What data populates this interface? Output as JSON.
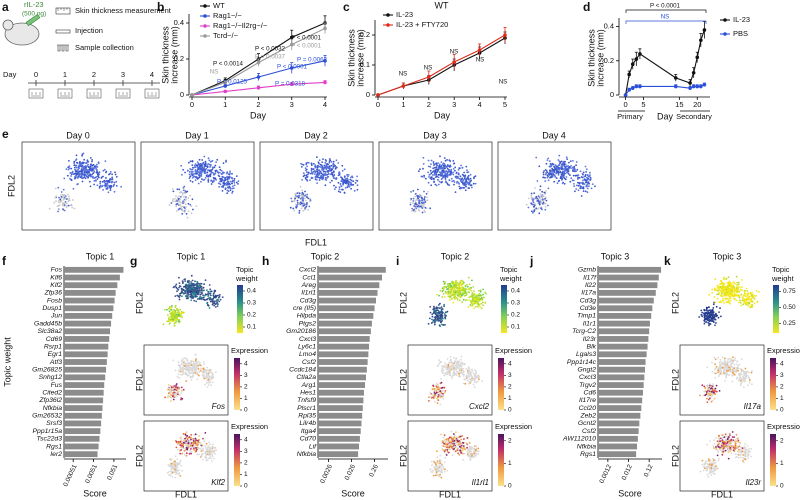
{
  "panel_letters": [
    "a",
    "b",
    "c",
    "d",
    "e",
    "f",
    "g",
    "h",
    "i",
    "j",
    "k"
  ],
  "schematic": {
    "dose_label": "rIL-23",
    "dose": "(500 ng)",
    "legend": [
      "Skin thickness measurement",
      "Injection",
      "Sample collection"
    ],
    "day_label": "Day",
    "days": [
      0,
      1,
      2,
      3,
      4
    ]
  },
  "chart_data": [
    {
      "type": "line",
      "xlabel": "Day",
      "ylabel": [
        "Skin thickness",
        "increase (mm)"
      ],
      "x": [
        0,
        1,
        2,
        3,
        4
      ],
      "xlim": [
        0,
        4
      ],
      "xticks": [
        0,
        1,
        2,
        3,
        4
      ],
      "ylim": [
        0,
        0.45
      ],
      "yticks": [
        0,
        0.2,
        0.4
      ],
      "series": [
        {
          "name": "WT",
          "color": "#111111",
          "values": [
            0,
            0.08,
            0.2,
            0.32,
            0.4
          ],
          "errors": [
            0,
            0.015,
            0.03,
            0.04,
            0.04
          ]
        },
        {
          "name": "Rag1−/−",
          "color": "#2b4fd8",
          "values": [
            0,
            0.05,
            0.1,
            0.15,
            0.19
          ],
          "errors": [
            0,
            0.01,
            0.02,
            0.03,
            0.03
          ]
        },
        {
          "name": "Rag1−/−Il2rg−/−",
          "color": "#e040c8",
          "values": [
            0,
            0.02,
            0.04,
            0.06,
            0.07
          ],
          "errors": [
            0,
            0.005,
            0.01,
            0.01,
            0.01
          ]
        },
        {
          "name": "Tcrd−/−",
          "color": "#9a9a9a",
          "values": [
            0,
            0.07,
            0.18,
            0.28,
            0.37
          ],
          "errors": [
            0,
            0.01,
            0.02,
            0.03,
            0.03
          ]
        }
      ],
      "annotations": [
        {
          "text": "P < 0.0001",
          "color": "#111111"
        },
        {
          "text": "P < 0.0001",
          "color": "#9a9a9a"
        },
        {
          "text": "P < 0.0032",
          "color": "#111111"
        },
        {
          "text": "P = 0.0037",
          "color": "#9a9a9a"
        },
        {
          "text": "P < 0.0014",
          "color": "#111111"
        },
        {
          "text": "NS",
          "color": "#9a9a9a"
        },
        {
          "text": "P = 0.0125",
          "color": "#2b4fd8"
        },
        {
          "text": "P < 0.0001",
          "color": "#2b4fd8"
        },
        {
          "text": "P = 0.0318",
          "color": "#2b4fd8"
        },
        {
          "text": "P = 0.0062",
          "color": "#2b4fd8"
        }
      ]
    },
    {
      "type": "line",
      "title": "WT",
      "xlabel": "Day",
      "ylabel": [
        "Skin thickness",
        "increase (mm)"
      ],
      "x": [
        0,
        1,
        2,
        3,
        4,
        5
      ],
      "xlim": [
        0,
        5
      ],
      "xticks": [
        0,
        1,
        2,
        3,
        4,
        5
      ],
      "ylim": [
        0,
        0.25
      ],
      "yticks": [
        0,
        0.1,
        0.2
      ],
      "series": [
        {
          "name": "IL-23",
          "color": "#111111",
          "values": [
            0,
            0.03,
            0.05,
            0.1,
            0.14,
            0.19
          ],
          "errors": [
            0,
            0.01,
            0.015,
            0.02,
            0.02,
            0.02
          ]
        },
        {
          "name": "IL-23 + FTY720",
          "color": "#e02a1a",
          "values": [
            0,
            0.03,
            0.06,
            0.11,
            0.15,
            0.2
          ],
          "errors": [
            0,
            0.01,
            0.02,
            0.025,
            0.02,
            0.025
          ]
        }
      ],
      "annotations": [
        {
          "text": "NS",
          "color": "#111111"
        },
        {
          "text": "NS",
          "color": "#111111"
        },
        {
          "text": "NS",
          "color": "#111111"
        },
        {
          "text": "NS",
          "color": "#111111"
        },
        {
          "text": "NS",
          "color": "#111111"
        }
      ]
    },
    {
      "type": "line",
      "xlabel": "Day",
      "xgroups": [
        "Primary",
        "Secondary"
      ],
      "ylabel": [
        "Skin thickness",
        "increase (mm)"
      ],
      "x": [
        0,
        1,
        2,
        3,
        4,
        14,
        18,
        19,
        20,
        21,
        22
      ],
      "xlim": [
        -1,
        23
      ],
      "xticks": [
        0,
        5,
        15,
        20
      ],
      "ylim": [
        0,
        0.45
      ],
      "yticks": [
        0,
        0.2,
        0.4
      ],
      "series": [
        {
          "name": "IL-23",
          "color": "#111111",
          "values": [
            0,
            0.12,
            0.18,
            0.21,
            0.24,
            0.1,
            0.07,
            0.13,
            0.22,
            0.32,
            0.38
          ],
          "errors": [
            0,
            0.02,
            0.03,
            0.04,
            0.03,
            0.02,
            0.02,
            0.03,
            0.03,
            0.04,
            0.05
          ]
        },
        {
          "name": "PBS",
          "color": "#2b4fd8",
          "values": [
            0,
            0.03,
            0.04,
            0.05,
            0.05,
            0.05,
            0.04,
            0.05,
            0.05,
            0.05,
            0.06
          ],
          "errors": [
            0,
            0.01,
            0.01,
            0.01,
            0.01,
            0.01,
            0.01,
            0.01,
            0.01,
            0.01,
            0.01
          ]
        }
      ],
      "annotations": [
        {
          "text": "P < 0.0001",
          "color": "#111111"
        },
        {
          "text": "NS",
          "color": "#2b4fd8"
        }
      ]
    },
    {
      "type": "bar",
      "orientation": "horizontal",
      "log_x": true,
      "color": "#8c8c8c",
      "title": "Topic 1",
      "ylabel": "Topic weight",
      "xlabel": "Score",
      "categories": [
        "Fos",
        "Klf6",
        "Klf2",
        "Zfp36",
        "Fosb",
        "Dusp1",
        "Jun",
        "Gadd45b",
        "Slc38a2",
        "Cd69",
        "Rsrp1",
        "Egr1",
        "Atf3",
        "Gm26825",
        "Snhg12",
        "Fus",
        "Cited2",
        "Zfp36l2",
        "Nfkbia",
        "Gm26532",
        "Srsf3",
        "Ppp1r15a",
        "Tsc22d3",
        "Rgs1",
        "Ier2"
      ],
      "values": [
        0.15,
        0.1,
        0.075,
        0.062,
        0.055,
        0.048,
        0.042,
        0.037,
        0.033,
        0.03,
        0.027,
        0.025,
        0.023,
        0.021,
        0.019,
        0.017,
        0.016,
        0.015,
        0.014,
        0.013,
        0.012,
        0.011,
        0.01,
        0.009,
        0.008
      ],
      "xlim": [
        0.00018,
        0.2
      ],
      "xticks": [
        0.00051,
        0.0051,
        0.051
      ]
    },
    {
      "type": "bar",
      "orientation": "horizontal",
      "log_x": true,
      "color": "#8c8c8c",
      "title": "Topic 2",
      "xlabel": "Score",
      "categories": [
        "Cxcl2",
        "Ccl1",
        "Areg",
        "Il1rl1",
        "Cd3g",
        "cre (Il5)",
        "Hilpda",
        "Ptgs2",
        "Gm20186",
        "Cxcl3",
        "Ly6c1",
        "Lmo4",
        "Csf2",
        "Ccdc184",
        "Ctla2a",
        "Arg1",
        "Hes1",
        "Tnfsf9",
        "Plscr1",
        "Rpl35",
        "Lilr4b",
        "Itga4",
        "Cd70",
        "Lif",
        "Nfkbia"
      ],
      "values": [
        0.8,
        0.55,
        0.42,
        0.35,
        0.3,
        0.26,
        0.23,
        0.2,
        0.18,
        0.16,
        0.15,
        0.14,
        0.13,
        0.12,
        0.11,
        0.1,
        0.09,
        0.085,
        0.08,
        0.075,
        0.07,
        0.065,
        0.06,
        0.055,
        0.05
      ],
      "xlim": [
        0.0009,
        1
      ],
      "xticks": [
        0.0026,
        0.026,
        0.26
      ]
    },
    {
      "type": "bar",
      "orientation": "horizontal",
      "log_x": true,
      "color": "#8c8c8c",
      "title": "Topic 3",
      "xlabel": "Score",
      "categories": [
        "Gzmb",
        "Il17f",
        "Il22",
        "Il17a",
        "Cd3g",
        "Cd3e",
        "Timp1",
        "Il1r1",
        "Tcrg-C2",
        "Il23r",
        "Blk",
        "Lgals3",
        "Ppp1r14c",
        "Gngt2",
        "Cxcl3",
        "Trgv2",
        "Cd6",
        "Il17re",
        "Ccl20",
        "Zeb2",
        "Gcnt2",
        "Csf2",
        "AW112010",
        "Nfkbia",
        "Rgs1"
      ],
      "values": [
        0.45,
        0.35,
        0.3,
        0.25,
        0.2,
        0.17,
        0.15,
        0.13,
        0.12,
        0.11,
        0.1,
        0.09,
        0.08,
        0.075,
        0.07,
        0.065,
        0.06,
        0.055,
        0.05,
        0.045,
        0.04,
        0.037,
        0.034,
        0.031,
        0.028
      ],
      "xlim": [
        0.0004,
        0.5
      ],
      "xticks": [
        0.0012,
        0.012,
        0.12
      ]
    }
  ],
  "embedding": {
    "days": [
      "Day 0",
      "Day 1",
      "Day 2",
      "Day 3",
      "Day 4"
    ],
    "xlabel": "FDL1",
    "ylabel": "FDL2"
  },
  "topics": [
    {
      "title": "Topic 1",
      "weight_label": [
        "Topic",
        "weight"
      ],
      "weight_lim": [
        0.05,
        0.45
      ],
      "weight_ticks": [
        0.1,
        0.2,
        0.3,
        0.4
      ],
      "expression_label": "Expression",
      "genes": [
        {
          "name": "Fos",
          "lim": [
            0,
            4.5
          ],
          "ticks": [
            0,
            1,
            2,
            3,
            4
          ]
        },
        {
          "name": "Klf2",
          "lim": [
            0,
            4.5
          ],
          "ticks": [
            0,
            1,
            2,
            3,
            4
          ]
        }
      ]
    },
    {
      "title": "Topic 2",
      "weight_label": [
        "Topic",
        "weight"
      ],
      "weight_lim": [
        0.05,
        0.45
      ],
      "weight_ticks": [
        0.1,
        0.2,
        0.3,
        0.4
      ],
      "expression_label": "Expression",
      "genes": [
        {
          "name": "Cxcl2",
          "lim": [
            0,
            4.5
          ],
          "ticks": [
            0,
            1,
            2,
            3,
            4
          ]
        },
        {
          "name": "Il1rl1",
          "lim": [
            0,
            2.3
          ],
          "ticks": [
            0,
            1,
            2
          ]
        }
      ]
    },
    {
      "title": "Topic 3",
      "weight_label": [
        "Topic",
        "weight"
      ],
      "weight_lim": [
        0.1,
        0.85
      ],
      "weight_ticks": [
        0.25,
        {
          "value": 0.5,
          "label": "0.50"
        },
        0.75
      ],
      "expression_label": "Expression",
      "genes": [
        {
          "name": "Il17a",
          "lim": [
            0,
            4.5
          ],
          "ticks": [
            0,
            1,
            2,
            3,
            4
          ]
        },
        {
          "name": "Il23r",
          "lim": [
            0,
            2.3
          ],
          "ticks": [
            0,
            1,
            2
          ]
        }
      ]
    }
  ]
}
